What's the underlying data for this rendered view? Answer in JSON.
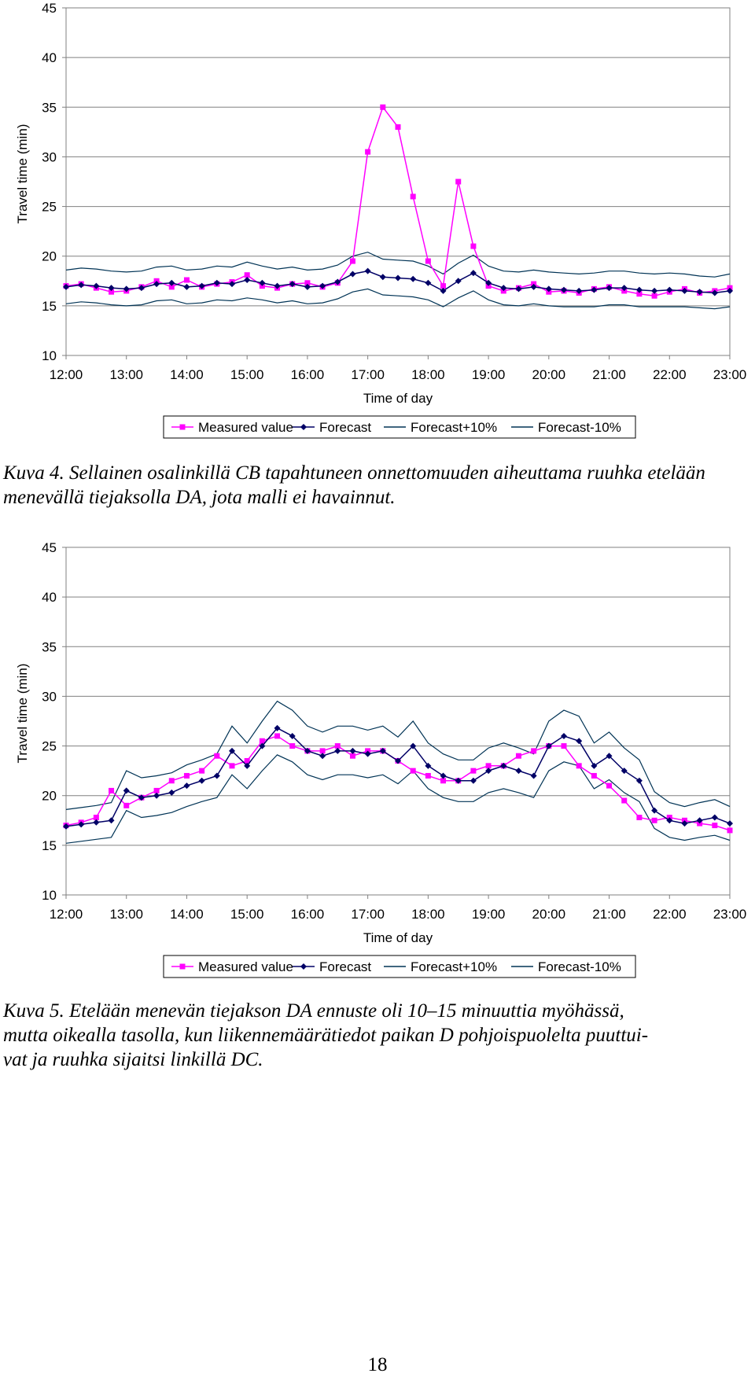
{
  "chart_data": [
    {
      "type": "line",
      "xlabel": "Time of day",
      "ylabel": "Travel time (min)",
      "ylim": [
        10,
        45
      ],
      "yticks": [
        "45",
        "40",
        "35",
        "30",
        "25",
        "20",
        "15",
        "10"
      ],
      "xticks": [
        "12:00",
        "13:00",
        "14:00",
        "15:00",
        "16:00",
        "17:00",
        "18:00",
        "19:00",
        "20:00",
        "21:00",
        "22:00",
        "23:00"
      ],
      "grid": "horizontal",
      "legend_position": "bottom",
      "colors": {
        "measured": "#ff00ff",
        "forecast": "#000066",
        "band": "#003355"
      },
      "x": [
        12.0,
        12.25,
        12.5,
        12.75,
        13.0,
        13.25,
        13.5,
        13.75,
        14.0,
        14.25,
        14.5,
        14.75,
        15.0,
        15.25,
        15.5,
        15.75,
        16.0,
        16.25,
        16.5,
        16.75,
        17.0,
        17.25,
        17.5,
        17.75,
        18.0,
        18.25,
        18.5,
        18.75,
        19.0,
        19.25,
        19.5,
        19.75,
        20.0,
        20.25,
        20.5,
        20.75,
        21.0,
        21.25,
        21.5,
        21.75,
        22.0,
        22.25,
        22.5,
        22.75,
        23.0
      ],
      "series": [
        {
          "name": "Measured value",
          "marker": "square",
          "color": "#ff00ff",
          "values": [
            17.0,
            17.2,
            16.8,
            16.4,
            16.5,
            16.9,
            17.5,
            16.9,
            17.6,
            16.9,
            17.2,
            17.4,
            18.1,
            17.0,
            16.8,
            17.2,
            17.3,
            16.9,
            17.3,
            19.5,
            30.5,
            35.0,
            33.0,
            26.0,
            19.5,
            17.0,
            27.5,
            21.0,
            17.0,
            16.5,
            16.8,
            17.2,
            16.4,
            16.5,
            16.3,
            16.7,
            16.9,
            16.5,
            16.2,
            16.0,
            16.4,
            16.7,
            16.3,
            16.5,
            16.8
          ]
        },
        {
          "name": "Forecast",
          "marker": "diamond",
          "color": "#000066",
          "values": [
            16.9,
            17.1,
            17.0,
            16.8,
            16.7,
            16.8,
            17.2,
            17.3,
            16.9,
            17.0,
            17.3,
            17.2,
            17.6,
            17.3,
            17.0,
            17.2,
            16.9,
            17.0,
            17.4,
            18.2,
            18.5,
            17.9,
            17.8,
            17.7,
            17.3,
            16.5,
            17.5,
            18.3,
            17.3,
            16.8,
            16.7,
            16.9,
            16.7,
            16.6,
            16.5,
            16.6,
            16.8,
            16.8,
            16.6,
            16.5,
            16.6,
            16.5,
            16.4,
            16.3,
            16.5
          ]
        },
        {
          "name": "Forecast+10%",
          "marker": "none",
          "color": "#003355",
          "values": [
            18.6,
            18.8,
            18.7,
            18.5,
            18.4,
            18.5,
            18.9,
            19.0,
            18.6,
            18.7,
            19.0,
            18.9,
            19.4,
            19.0,
            18.7,
            18.9,
            18.6,
            18.7,
            19.1,
            20.0,
            20.4,
            19.7,
            19.6,
            19.5,
            19.0,
            18.2,
            19.3,
            20.1,
            19.0,
            18.5,
            18.4,
            18.6,
            18.4,
            18.3,
            18.2,
            18.3,
            18.5,
            18.5,
            18.3,
            18.2,
            18.3,
            18.2,
            18.0,
            17.9,
            18.2
          ]
        },
        {
          "name": "Forecast-10%",
          "marker": "none",
          "color": "#003355",
          "values": [
            15.2,
            15.4,
            15.3,
            15.1,
            15.0,
            15.1,
            15.5,
            15.6,
            15.2,
            15.3,
            15.6,
            15.5,
            15.8,
            15.6,
            15.3,
            15.5,
            15.2,
            15.3,
            15.7,
            16.4,
            16.7,
            16.1,
            16.0,
            15.9,
            15.6,
            14.9,
            15.8,
            16.5,
            15.6,
            15.1,
            15.0,
            15.2,
            15.0,
            14.9,
            14.9,
            14.9,
            15.1,
            15.1,
            14.9,
            14.9,
            14.9,
            14.9,
            14.8,
            14.7,
            14.9
          ]
        }
      ]
    },
    {
      "type": "line",
      "xlabel": "Time of day",
      "ylabel": "Travel time (min)",
      "ylim": [
        10,
        45
      ],
      "yticks": [
        "45",
        "40",
        "35",
        "30",
        "25",
        "20",
        "15",
        "10"
      ],
      "xticks": [
        "12:00",
        "13:00",
        "14:00",
        "15:00",
        "16:00",
        "17:00",
        "18:00",
        "19:00",
        "20:00",
        "21:00",
        "22:00",
        "23:00"
      ],
      "grid": "horizontal",
      "legend_position": "bottom",
      "colors": {
        "measured": "#ff00ff",
        "forecast": "#000066",
        "band": "#003355"
      },
      "x": [
        12.0,
        12.25,
        12.5,
        12.75,
        13.0,
        13.25,
        13.5,
        13.75,
        14.0,
        14.25,
        14.5,
        14.75,
        15.0,
        15.25,
        15.5,
        15.75,
        16.0,
        16.25,
        16.5,
        16.75,
        17.0,
        17.25,
        17.5,
        17.75,
        18.0,
        18.25,
        18.5,
        18.75,
        19.0,
        19.25,
        19.5,
        19.75,
        20.0,
        20.25,
        20.5,
        20.75,
        21.0,
        21.25,
        21.5,
        21.75,
        22.0,
        22.25,
        22.5,
        22.75,
        23.0
      ],
      "series": [
        {
          "name": "Measured value",
          "marker": "square",
          "color": "#ff00ff",
          "values": [
            17.0,
            17.3,
            17.8,
            20.5,
            19.0,
            19.8,
            20.5,
            21.5,
            22.0,
            22.5,
            24.0,
            23.0,
            23.5,
            25.5,
            26.0,
            25.0,
            24.5,
            24.5,
            25.0,
            24.0,
            24.5,
            24.5,
            23.5,
            22.5,
            22.0,
            21.5,
            21.5,
            22.5,
            23.0,
            23.0,
            24.0,
            24.5,
            25.0,
            25.0,
            23.0,
            22.0,
            21.0,
            19.5,
            17.8,
            17.5,
            17.8,
            17.5,
            17.2,
            17.0,
            16.5
          ]
        },
        {
          "name": "Forecast",
          "marker": "diamond",
          "color": "#000066",
          "values": [
            16.9,
            17.1,
            17.3,
            17.5,
            20.5,
            19.8,
            20.0,
            20.3,
            21.0,
            21.5,
            22.0,
            24.5,
            23.0,
            25.0,
            26.8,
            26.0,
            24.5,
            24.0,
            24.5,
            24.5,
            24.2,
            24.5,
            23.5,
            25.0,
            23.0,
            22.0,
            21.5,
            21.5,
            22.5,
            23.0,
            22.5,
            22.0,
            25.0,
            26.0,
            25.5,
            23.0,
            24.0,
            22.5,
            21.5,
            18.5,
            17.5,
            17.2,
            17.5,
            17.8,
            17.2
          ]
        },
        {
          "name": "Forecast+10%",
          "marker": "none",
          "color": "#003355",
          "values": [
            18.6,
            18.8,
            19.0,
            19.3,
            22.5,
            21.8,
            22.0,
            22.3,
            23.1,
            23.6,
            24.2,
            27.0,
            25.3,
            27.5,
            29.5,
            28.6,
            27.0,
            26.4,
            27.0,
            27.0,
            26.6,
            27.0,
            25.9,
            27.5,
            25.3,
            24.2,
            23.6,
            23.6,
            24.8,
            25.3,
            24.8,
            24.2,
            27.5,
            28.6,
            28.0,
            25.3,
            26.4,
            24.8,
            23.6,
            20.4,
            19.3,
            18.9,
            19.3,
            19.6,
            18.9
          ]
        },
        {
          "name": "Forecast-10%",
          "marker": "none",
          "color": "#003355",
          "values": [
            15.2,
            15.4,
            15.6,
            15.8,
            18.5,
            17.8,
            18.0,
            18.3,
            18.9,
            19.4,
            19.8,
            22.1,
            20.7,
            22.5,
            24.1,
            23.4,
            22.1,
            21.6,
            22.1,
            22.1,
            21.8,
            22.1,
            21.2,
            22.5,
            20.7,
            19.8,
            19.4,
            19.4,
            20.3,
            20.7,
            20.3,
            19.8,
            22.5,
            23.4,
            23.0,
            20.7,
            21.6,
            20.3,
            19.4,
            16.7,
            15.8,
            15.5,
            15.8,
            16.0,
            15.5
          ]
        }
      ]
    }
  ],
  "captions": [
    "Kuva 4. Sellainen osalinkillä CB tapahtuneen onnettomuuden aiheuttama ruuhka etelään menevällä tiejaksolla DA, jota malli ei havainnut.",
    "Kuva 5. Etelään menevän tiejakson DA ennuste oli 10–15 minuuttia myöhässä,\nmutta oikealla tasolla, kun liikennemäärätiedot paikan D pohjoispuolelta puuttui-\nvat ja ruuhka sijaitsi linkillä DC."
  ],
  "page_number": "18"
}
